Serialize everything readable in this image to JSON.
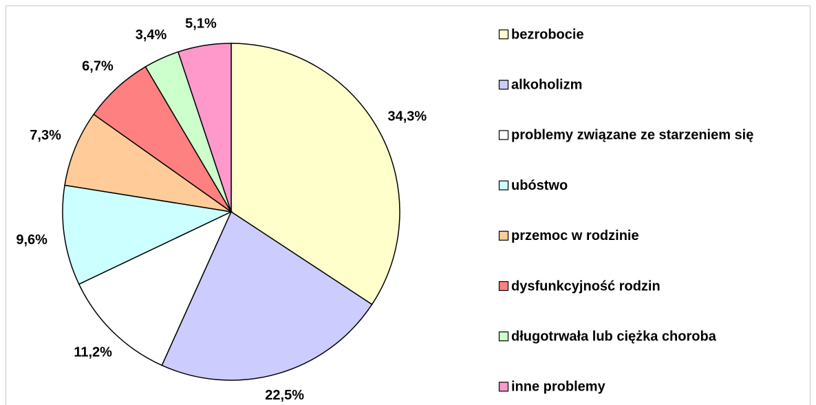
{
  "chart_data": {
    "type": "pie",
    "categories": [
      "bezrobocie",
      "alkoholizm",
      "problemy związane ze starzeniem się",
      "ubóstwo",
      "przemoc w rodzinie",
      "dysfunkcyjność rodzin",
      "długotrwała lub ciężka choroba",
      "inne problemy"
    ],
    "values": [
      34.3,
      22.5,
      11.2,
      9.6,
      7.3,
      6.7,
      3.4,
      5.1
    ],
    "value_labels": [
      "34,3%",
      "22,5%",
      "11,2%",
      "9,6%",
      "7,3%",
      "6,7%",
      "3,4%",
      "5,1%"
    ],
    "colors": [
      "#ffffcc",
      "#ccccff",
      "#ffffff",
      "#ccffff",
      "#ffcc99",
      "#ff8080",
      "#ccffcc",
      "#ff99cc"
    ],
    "legend": "right"
  }
}
